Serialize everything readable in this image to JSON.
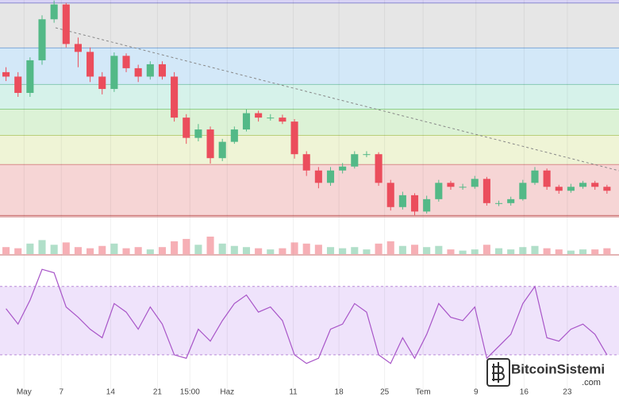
{
  "chart_data": {
    "type": "candlestick",
    "open": [
      690,
      681,
      648,
      714,
      797,
      827,
      747,
      731,
      681,
      656,
      723,
      698,
      681,
      706,
      681,
      598,
      557,
      574,
      516,
      549,
      574,
      607,
      598,
      598,
      590,
      524,
      491,
      466,
      491,
      499,
      524,
      524,
      466,
      417,
      441,
      408,
      433,
      466,
      458,
      458,
      474,
      425,
      425,
      433,
      466,
      491,
      458,
      450,
      458,
      466,
      458
    ],
    "high": [
      700,
      690,
      720,
      805,
      835,
      830,
      760,
      740,
      690,
      730,
      728,
      705,
      712,
      712,
      690,
      605,
      585,
      580,
      555,
      580,
      615,
      612,
      605,
      604,
      595,
      530,
      498,
      498,
      506,
      530,
      530,
      528,
      472,
      448,
      445,
      440,
      472,
      470,
      464,
      480,
      478,
      430,
      438,
      472,
      498,
      495,
      462,
      464,
      470,
      470,
      462
    ],
    "low": [
      672,
      640,
      640,
      705,
      790,
      740,
      700,
      670,
      645,
      650,
      690,
      670,
      675,
      675,
      590,
      545,
      550,
      505,
      510,
      545,
      570,
      590,
      592,
      585,
      515,
      480,
      455,
      460,
      485,
      495,
      518,
      460,
      410,
      412,
      400,
      404,
      428,
      452,
      452,
      454,
      420,
      419,
      420,
      430,
      462,
      452,
      444,
      446,
      454,
      452,
      444
    ],
    "close": [
      681,
      648,
      714,
      797,
      827,
      747,
      731,
      681,
      656,
      723,
      698,
      681,
      706,
      681,
      598,
      557,
      574,
      516,
      549,
      574,
      607,
      598,
      598,
      590,
      524,
      491,
      466,
      491,
      499,
      524,
      524,
      466,
      417,
      441,
      408,
      433,
      466,
      458,
      458,
      474,
      425,
      425,
      433,
      466,
      491,
      458,
      450,
      458,
      466,
      458,
      450
    ],
    "up_color": "#53b987",
    "down_color": "#eb4d5c",
    "ylim": [
      399,
      836
    ],
    "xlim": [
      -0.5,
      51
    ],
    "xticks": [
      {
        "value": 1.5,
        "label": "May"
      },
      {
        "value": 4.6,
        "label": "7"
      },
      {
        "value": 8.7,
        "label": "14"
      },
      {
        "value": 12.6,
        "label": "21"
      },
      {
        "value": 15.3,
        "label": "15:00"
      },
      {
        "value": 18.4,
        "label": "Haz"
      },
      {
        "value": 23.9,
        "label": "11"
      },
      {
        "value": 27.7,
        "label": "18"
      },
      {
        "value": 31.5,
        "label": "25"
      },
      {
        "value": 34.7,
        "label": "Tem"
      },
      {
        "value": 39.1,
        "label": "9"
      },
      {
        "value": 43.1,
        "label": "16"
      },
      {
        "value": 46.7,
        "label": "23"
      }
    ],
    "levels": [
      830,
      739,
      665,
      615,
      562,
      503,
      400
    ],
    "level_colors": [
      "#e6e6e6",
      "#d3e8f8",
      "#d6f2ea",
      "#dcf2d6",
      "#eff4d6",
      "#f6d5d5"
    ],
    "level_line_colors": [
      "#8a8ad0",
      "#7fa9d8",
      "#86c9b4",
      "#8fcf8a",
      "#b9cf7a",
      "#d88a8a",
      "#c86a6a"
    ],
    "top_color": "#d8d3f5",
    "volume": [
      6,
      5,
      9,
      12,
      8,
      10,
      6,
      5,
      7,
      9,
      5,
      6,
      4,
      6,
      11,
      13,
      8,
      15,
      9,
      7,
      6,
      5,
      4,
      5,
      10,
      9,
      8,
      6,
      5,
      6,
      4,
      9,
      11,
      7,
      8,
      6,
      7,
      4,
      3,
      4,
      8,
      5,
      4,
      6,
      7,
      5,
      4,
      3,
      4,
      4,
      5
    ],
    "volume_ylim": [
      0,
      30
    ],
    "rsi": {
      "values": [
        57,
        48,
        62,
        80,
        78,
        58,
        52,
        45,
        40,
        60,
        55,
        45,
        58,
        48,
        30,
        28,
        45,
        38,
        50,
        60,
        65,
        55,
        58,
        50,
        30,
        25,
        28,
        45,
        48,
        60,
        55,
        30,
        25,
        40,
        28,
        42,
        60,
        52,
        50,
        58,
        28,
        35,
        42,
        60,
        70,
        40,
        38,
        45,
        48,
        42,
        30
      ],
      "ylim": [
        10,
        88
      ],
      "bands": [
        30,
        70
      ],
      "color": "#a855c8",
      "band_color": "#efe3fb"
    },
    "watermark": [
      "BitcoinSistemi",
      ".com"
    ]
  }
}
